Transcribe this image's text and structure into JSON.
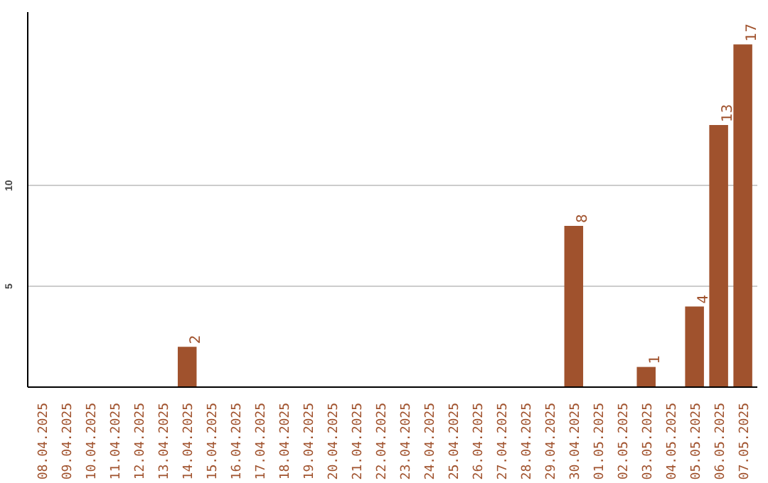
{
  "chart_data": {
    "type": "bar",
    "categories": [
      "08.04.2025",
      "09.04.2025",
      "10.04.2025",
      "11.04.2025",
      "12.04.2025",
      "13.04.2025",
      "14.04.2025",
      "15.04.2025",
      "16.04.2025",
      "17.04.2025",
      "18.04.2025",
      "19.04.2025",
      "20.04.2025",
      "21.04.2025",
      "22.04.2025",
      "23.04.2025",
      "24.04.2025",
      "25.04.2025",
      "26.04.2025",
      "27.04.2025",
      "28.04.2025",
      "29.04.2025",
      "30.04.2025",
      "01.05.2025",
      "02.05.2025",
      "03.05.2025",
      "04.05.2025",
      "05.05.2025",
      "06.05.2025",
      "07.05.2025"
    ],
    "values": [
      0,
      0,
      0,
      0,
      0,
      0,
      2,
      0,
      0,
      0,
      0,
      0,
      0,
      0,
      0,
      0,
      0,
      0,
      0,
      0,
      0,
      0,
      8,
      0,
      0,
      1,
      0,
      4,
      13,
      17
    ],
    "value_labels": [
      null,
      null,
      null,
      null,
      null,
      null,
      "2",
      null,
      null,
      null,
      null,
      null,
      null,
      null,
      null,
      null,
      null,
      null,
      null,
      null,
      null,
      null,
      "8",
      null,
      null,
      "1",
      null,
      "4",
      "13",
      "17"
    ],
    "color": "#a0522d",
    "ylim": [
      0,
      18.6
    ],
    "yticks": [
      5,
      10
    ],
    "grid": "y"
  }
}
